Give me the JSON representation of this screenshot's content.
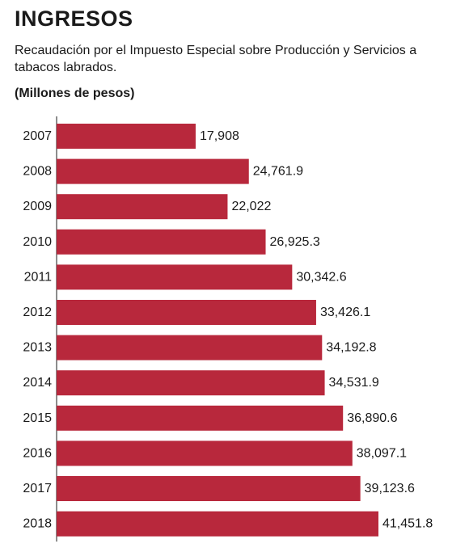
{
  "title": "INGRESOS",
  "subtitle": "Recaudación por el Impuesto Especial sobre Producción y Servicios a tabacos labrados.",
  "unit_label": "(Millones de pesos)",
  "chart_data": {
    "type": "bar",
    "orientation": "horizontal",
    "categories": [
      "2007",
      "2008",
      "2009",
      "2010",
      "2011",
      "2012",
      "2013",
      "2014",
      "2015",
      "2016",
      "2017",
      "2018"
    ],
    "values": [
      17908,
      24761.9,
      22022,
      26925.3,
      30342.6,
      33426.1,
      34192.8,
      34531.9,
      36890.6,
      38097.1,
      39123.6,
      41451.8
    ],
    "value_labels": [
      "17,908",
      "24,761.9",
      "22,022",
      "26,925.3",
      "30,342.6",
      "33,426.1",
      "34,192.8",
      "34,531.9",
      "36,890.6",
      "38,097.1",
      "39,123.6",
      "41,451.8"
    ],
    "xlim": [
      0,
      41451.8
    ],
    "bar_color": "#b8283c",
    "grid": false
  }
}
